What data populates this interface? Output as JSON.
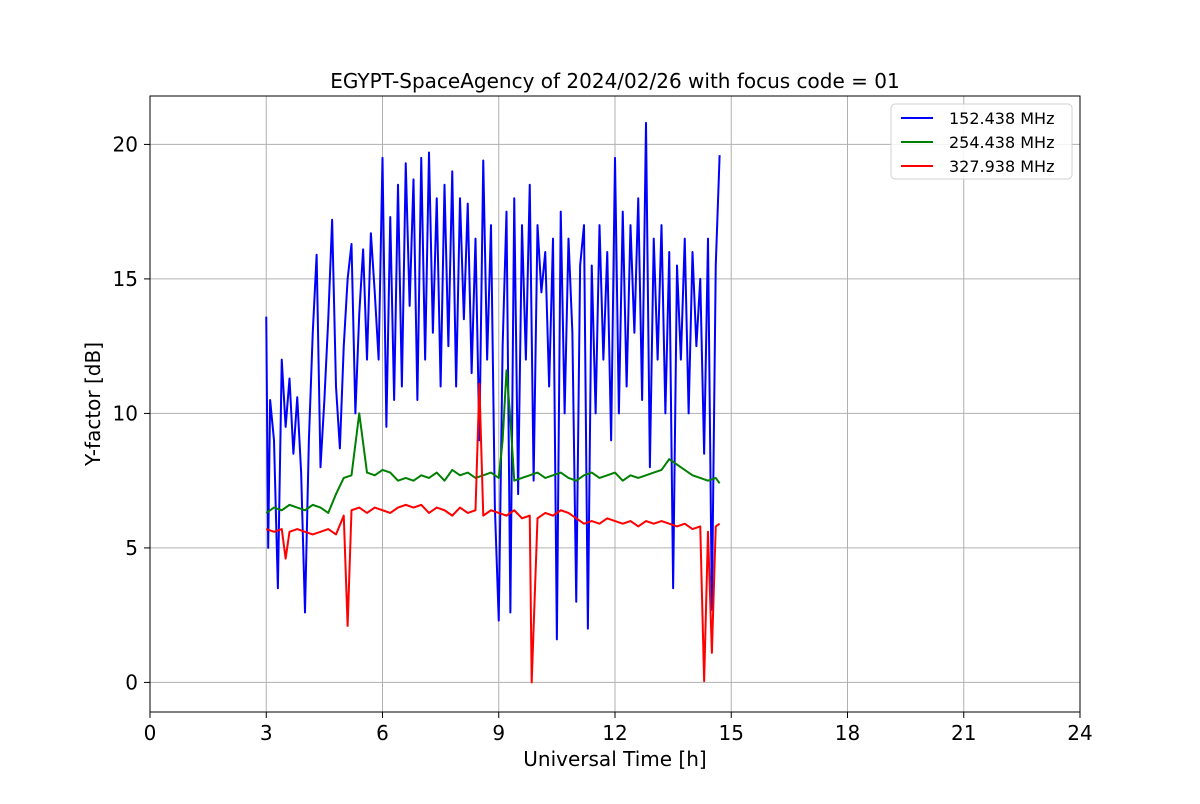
{
  "chart_data": {
    "type": "line",
    "title": "EGYPT-SpaceAgency of 2024/02/26 with focus code = 01",
    "xlabel": "Universal Time [h]",
    "ylabel": "Y-factor [dB]",
    "xlim": [
      0,
      24
    ],
    "ylim": [
      -1.1,
      21.8
    ],
    "xticks": [
      0,
      3,
      6,
      9,
      12,
      15,
      18,
      21,
      24
    ],
    "xtick_labels": [
      "0",
      "3",
      "6",
      "9",
      "12",
      "15",
      "18",
      "21",
      "24"
    ],
    "yticks": [
      0,
      5,
      10,
      15,
      20
    ],
    "ytick_labels": [
      "0",
      "5",
      "10",
      "15",
      "20"
    ],
    "grid": true,
    "legend_position": "top-right",
    "series": [
      {
        "name": "152.438 MHz",
        "color": "#0000ff",
        "x": [
          3.0,
          3.05,
          3.1,
          3.2,
          3.3,
          3.4,
          3.5,
          3.6,
          3.7,
          3.8,
          3.9,
          4.0,
          4.1,
          4.2,
          4.3,
          4.4,
          4.5,
          4.6,
          4.7,
          4.8,
          4.9,
          5.0,
          5.1,
          5.2,
          5.3,
          5.4,
          5.5,
          5.6,
          5.7,
          5.8,
          5.9,
          6.0,
          6.1,
          6.2,
          6.3,
          6.4,
          6.5,
          6.6,
          6.7,
          6.8,
          6.9,
          7.0,
          7.1,
          7.2,
          7.3,
          7.4,
          7.5,
          7.6,
          7.7,
          7.8,
          7.9,
          8.0,
          8.1,
          8.2,
          8.3,
          8.4,
          8.5,
          8.6,
          8.7,
          8.8,
          8.9,
          9.0,
          9.1,
          9.2,
          9.3,
          9.4,
          9.5,
          9.6,
          9.7,
          9.8,
          9.9,
          10.0,
          10.1,
          10.2,
          10.3,
          10.4,
          10.5,
          10.6,
          10.7,
          10.8,
          10.9,
          11.0,
          11.1,
          11.2,
          11.3,
          11.4,
          11.5,
          11.6,
          11.7,
          11.8,
          11.9,
          12.0,
          12.1,
          12.2,
          12.3,
          12.4,
          12.5,
          12.6,
          12.7,
          12.8,
          12.9,
          13.0,
          13.1,
          13.2,
          13.3,
          13.4,
          13.5,
          13.6,
          13.7,
          13.8,
          13.9,
          14.0,
          14.1,
          14.2,
          14.3,
          14.4,
          14.5,
          14.6,
          14.7
        ],
        "y": [
          13.6,
          5.0,
          10.5,
          9.0,
          3.5,
          12.0,
          9.5,
          11.3,
          8.5,
          10.6,
          7.8,
          2.6,
          9.0,
          13.0,
          15.9,
          8.0,
          10.5,
          13.5,
          17.2,
          11.0,
          8.7,
          12.5,
          15.0,
          16.3,
          10.0,
          13.7,
          16.1,
          12.0,
          16.7,
          14.5,
          12.0,
          19.5,
          9.5,
          17.3,
          10.5,
          18.5,
          11.0,
          19.3,
          14.0,
          18.7,
          10.5,
          19.5,
          12.0,
          19.7,
          13.0,
          18.0,
          11.0,
          18.5,
          12.5,
          19.0,
          11.0,
          18.0,
          13.5,
          17.8,
          11.5,
          16.5,
          9.0,
          19.4,
          12.0,
          17.0,
          6.5,
          2.3,
          12.5,
          17.5,
          2.6,
          18.0,
          7.0,
          17.0,
          12.0,
          18.5,
          7.5,
          17.0,
          14.5,
          16.0,
          11.0,
          16.5,
          1.6,
          17.5,
          10.0,
          16.5,
          13.0,
          3.0,
          15.5,
          17.0,
          2.0,
          15.5,
          10.0,
          17.0,
          12.0,
          16.0,
          9.0,
          19.5,
          10.0,
          17.5,
          11.0,
          17.0,
          13.0,
          18.0,
          10.5,
          20.8,
          8.0,
          16.5,
          12.0,
          17.0,
          10.0,
          16.0,
          3.5,
          15.5,
          12.0,
          16.5,
          10.0,
          16.0,
          12.5,
          15.0,
          8.5,
          16.5,
          2.7,
          15.5,
          19.6
        ]
      },
      {
        "name": "254.438 MHz",
        "color": "#008000",
        "x": [
          3.0,
          3.2,
          3.4,
          3.6,
          3.8,
          4.0,
          4.2,
          4.4,
          4.6,
          4.8,
          5.0,
          5.2,
          5.4,
          5.6,
          5.8,
          6.0,
          6.2,
          6.4,
          6.6,
          6.8,
          7.0,
          7.2,
          7.4,
          7.6,
          7.8,
          8.0,
          8.2,
          8.4,
          8.6,
          8.8,
          9.0,
          9.1,
          9.2,
          9.3,
          9.4,
          9.6,
          9.8,
          10.0,
          10.2,
          10.4,
          10.6,
          10.8,
          11.0,
          11.2,
          11.4,
          11.6,
          11.8,
          12.0,
          12.2,
          12.4,
          12.6,
          12.8,
          13.0,
          13.2,
          13.4,
          13.6,
          13.8,
          14.0,
          14.2,
          14.4,
          14.6,
          14.7
        ],
        "y": [
          6.3,
          6.5,
          6.4,
          6.6,
          6.5,
          6.4,
          6.6,
          6.5,
          6.3,
          7.0,
          7.6,
          7.7,
          10.0,
          7.8,
          7.7,
          7.9,
          7.8,
          7.5,
          7.6,
          7.5,
          7.7,
          7.6,
          7.8,
          7.5,
          7.9,
          7.7,
          7.8,
          7.6,
          7.7,
          7.8,
          7.6,
          9.0,
          11.6,
          9.8,
          7.5,
          7.6,
          7.7,
          7.8,
          7.6,
          7.7,
          7.8,
          7.6,
          7.5,
          7.7,
          7.8,
          7.6,
          7.7,
          7.8,
          7.5,
          7.7,
          7.6,
          7.7,
          7.8,
          7.9,
          8.3,
          8.1,
          7.9,
          7.7,
          7.6,
          7.5,
          7.6,
          7.4
        ]
      },
      {
        "name": "327.938 MHz",
        "color": "#ff0000",
        "x": [
          3.0,
          3.2,
          3.4,
          3.5,
          3.6,
          3.8,
          4.0,
          4.2,
          4.4,
          4.6,
          4.8,
          5.0,
          5.1,
          5.2,
          5.4,
          5.6,
          5.8,
          6.0,
          6.2,
          6.4,
          6.6,
          6.8,
          7.0,
          7.2,
          7.4,
          7.6,
          7.8,
          8.0,
          8.2,
          8.4,
          8.5,
          8.6,
          8.8,
          9.0,
          9.2,
          9.4,
          9.6,
          9.8,
          9.85,
          10.0,
          10.2,
          10.4,
          10.6,
          10.8,
          11.0,
          11.2,
          11.4,
          11.6,
          11.8,
          12.0,
          12.2,
          12.4,
          12.6,
          12.8,
          13.0,
          13.2,
          13.4,
          13.6,
          13.8,
          14.0,
          14.2,
          14.3,
          14.4,
          14.5,
          14.6,
          14.7
        ],
        "y": [
          5.7,
          5.6,
          5.7,
          4.6,
          5.6,
          5.7,
          5.6,
          5.5,
          5.6,
          5.7,
          5.5,
          6.2,
          2.1,
          6.4,
          6.5,
          6.3,
          6.5,
          6.4,
          6.3,
          6.5,
          6.6,
          6.5,
          6.6,
          6.3,
          6.5,
          6.4,
          6.2,
          6.5,
          6.3,
          6.4,
          11.1,
          6.2,
          6.4,
          6.3,
          6.2,
          6.4,
          6.1,
          6.2,
          0.0,
          6.1,
          6.3,
          6.2,
          6.4,
          6.3,
          6.1,
          5.9,
          6.0,
          5.9,
          6.1,
          6.0,
          5.9,
          6.0,
          5.8,
          6.0,
          5.9,
          6.0,
          5.9,
          5.8,
          5.9,
          5.7,
          5.8,
          0.05,
          5.6,
          1.1,
          5.8,
          5.9
        ]
      }
    ]
  }
}
